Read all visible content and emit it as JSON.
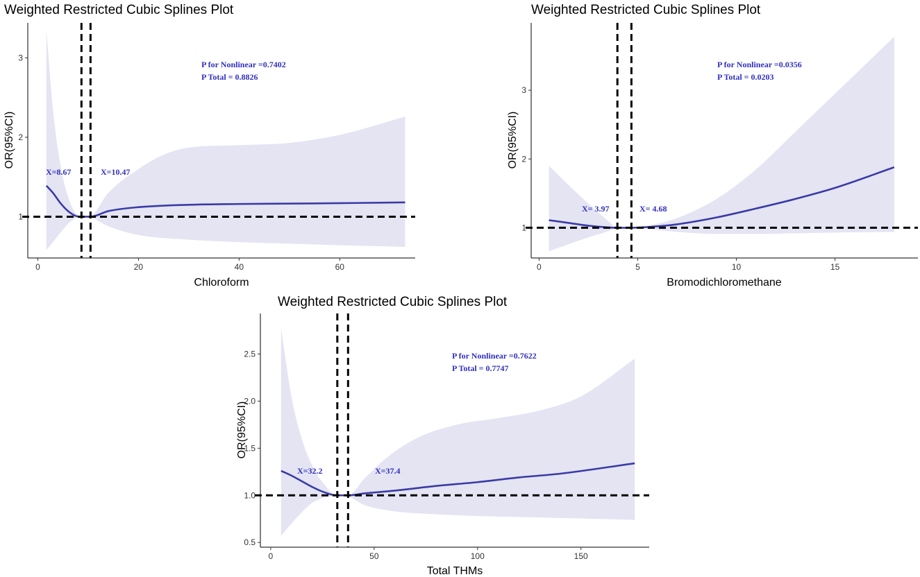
{
  "colors": {
    "line": "#3a3aa6",
    "band": "#e4e4f3",
    "annot": "#3030c0",
    "ref": "#000000"
  },
  "chart_data": [
    {
      "type": "line",
      "title": "Weighted Restricted Cubic Splines Plot",
      "xlabel": "Chloroform",
      "ylabel": "OR(95%CI)",
      "xlim": [
        -2,
        75
      ],
      "ylim": [
        0.48,
        3.44
      ],
      "xticks": [
        0,
        20,
        40,
        60
      ],
      "yticks": [
        1,
        2,
        3
      ],
      "ytick_decimals": 0,
      "ref_y": 1,
      "knots": [
        8.67,
        10.47
      ],
      "knot_labels": [
        "X=8.67",
        "X=10.47"
      ],
      "p_nonlinear": "P for Nonlinear =0.7402",
      "p_total": "P Total = 0.8826",
      "series": [
        {
          "name": "OR",
          "x": [
            1.7,
            3,
            4.5,
            6,
            7.5,
            8.67,
            10.47,
            14,
            20,
            30,
            40,
            50,
            60,
            73
          ],
          "y": [
            1.39,
            1.3,
            1.17,
            1.07,
            1.01,
            1.0,
            1.0,
            1.07,
            1.12,
            1.15,
            1.16,
            1.165,
            1.17,
            1.18
          ]
        },
        {
          "name": "Upper 95% CI",
          "x": [
            1.7,
            3,
            4.5,
            6,
            7.5,
            8.67,
            10.47,
            14,
            20,
            25,
            30,
            40,
            50,
            60,
            73
          ],
          "y": [
            3.35,
            2.35,
            1.65,
            1.25,
            1.05,
            1.0,
            1.01,
            1.3,
            1.6,
            1.78,
            1.87,
            1.9,
            1.93,
            2.03,
            2.26
          ]
        },
        {
          "name": "Lower 95% CI",
          "x": [
            1.7,
            3,
            4.5,
            6,
            7.5,
            8.67,
            10.47,
            14,
            20,
            30,
            40,
            50,
            60,
            73
          ],
          "y": [
            0.58,
            0.68,
            0.8,
            0.91,
            0.98,
            1.0,
            0.99,
            0.88,
            0.77,
            0.71,
            0.68,
            0.66,
            0.64,
            0.62
          ]
        }
      ]
    },
    {
      "type": "line",
      "title": "Weighted Restricted Cubic Splines Plot",
      "xlabel": "Bromodichloromethane",
      "ylabel": "OR(95%CI)",
      "xlim": [
        -0.4,
        19.2
      ],
      "ylim": [
        0.56,
        3.98
      ],
      "xticks": [
        0,
        5,
        10,
        15
      ],
      "yticks": [
        1,
        2,
        3
      ],
      "ytick_decimals": 0,
      "ref_y": 1,
      "knots": [
        3.97,
        4.68
      ],
      "knot_labels": [
        "X= 3.97",
        "X= 4.68"
      ],
      "p_nonlinear": "P for Nonlinear =0.0356",
      "p_total": "P Total = 0.0203",
      "series": [
        {
          "name": "OR",
          "x": [
            0.5,
            1.5,
            2.5,
            3.5,
            3.97,
            4.68,
            5.5,
            7,
            9,
            11,
            13,
            15,
            18
          ],
          "y": [
            1.11,
            1.07,
            1.03,
            1.005,
            1.0,
            1.0,
            1.01,
            1.05,
            1.15,
            1.28,
            1.42,
            1.58,
            1.88
          ]
        },
        {
          "name": "Upper 95% CI",
          "x": [
            0.5,
            1.5,
            2.5,
            3.5,
            3.97,
            4.68,
            5.5,
            7,
            9,
            11,
            13,
            15,
            18
          ],
          "y": [
            1.9,
            1.62,
            1.35,
            1.1,
            1.0,
            1.0,
            1.03,
            1.14,
            1.42,
            1.85,
            2.4,
            2.95,
            3.78
          ]
        },
        {
          "name": "Lower 95% CI",
          "x": [
            0.5,
            1.5,
            2.5,
            3.5,
            3.97,
            4.68,
            5.5,
            7,
            9,
            11,
            13,
            15,
            18
          ],
          "y": [
            0.66,
            0.76,
            0.86,
            0.95,
            1.0,
            1.0,
            0.98,
            0.94,
            0.91,
            0.91,
            0.92,
            0.93,
            0.94
          ]
        }
      ]
    },
    {
      "type": "line",
      "title": "Weighted Restricted Cubic Splines Plot",
      "xlabel": "Total THMs",
      "ylabel": "OR(95%CI)",
      "xlim": [
        -5,
        183
      ],
      "ylim": [
        0.45,
        2.93
      ],
      "xticks": [
        0,
        50,
        100,
        150
      ],
      "yticks": [
        0.5,
        1.0,
        1.5,
        2.0,
        2.5
      ],
      "ytick_decimals": 1,
      "ref_y": 1,
      "knots": [
        32.2,
        37.4
      ],
      "knot_labels": [
        "X=32.2",
        "X=37.4"
      ],
      "p_nonlinear": "P for Nonlinear =0.7622",
      "p_total": "P Total = 0.7747",
      "series": [
        {
          "name": "OR",
          "x": [
            5,
            10,
            15,
            20,
            25,
            32.2,
            37.4,
            45,
            60,
            80,
            100,
            120,
            140,
            176
          ],
          "y": [
            1.26,
            1.21,
            1.15,
            1.09,
            1.04,
            1.0,
            1.0,
            1.02,
            1.05,
            1.1,
            1.14,
            1.19,
            1.23,
            1.34
          ]
        },
        {
          "name": "Upper 95% CI",
          "x": [
            5,
            10,
            15,
            20,
            25,
            32.2,
            37.4,
            45,
            55,
            70,
            90,
            110,
            130,
            150,
            176
          ],
          "y": [
            2.77,
            2.05,
            1.6,
            1.32,
            1.14,
            1.0,
            1.0,
            1.17,
            1.38,
            1.6,
            1.75,
            1.82,
            1.9,
            2.05,
            2.45
          ]
        },
        {
          "name": "Lower 95% CI",
          "x": [
            5,
            10,
            15,
            20,
            25,
            32.2,
            37.4,
            45,
            60,
            80,
            100,
            120,
            140,
            176
          ],
          "y": [
            0.57,
            0.7,
            0.82,
            0.92,
            0.97,
            1.0,
            0.99,
            0.9,
            0.83,
            0.8,
            0.78,
            0.77,
            0.76,
            0.74
          ]
        }
      ]
    }
  ]
}
